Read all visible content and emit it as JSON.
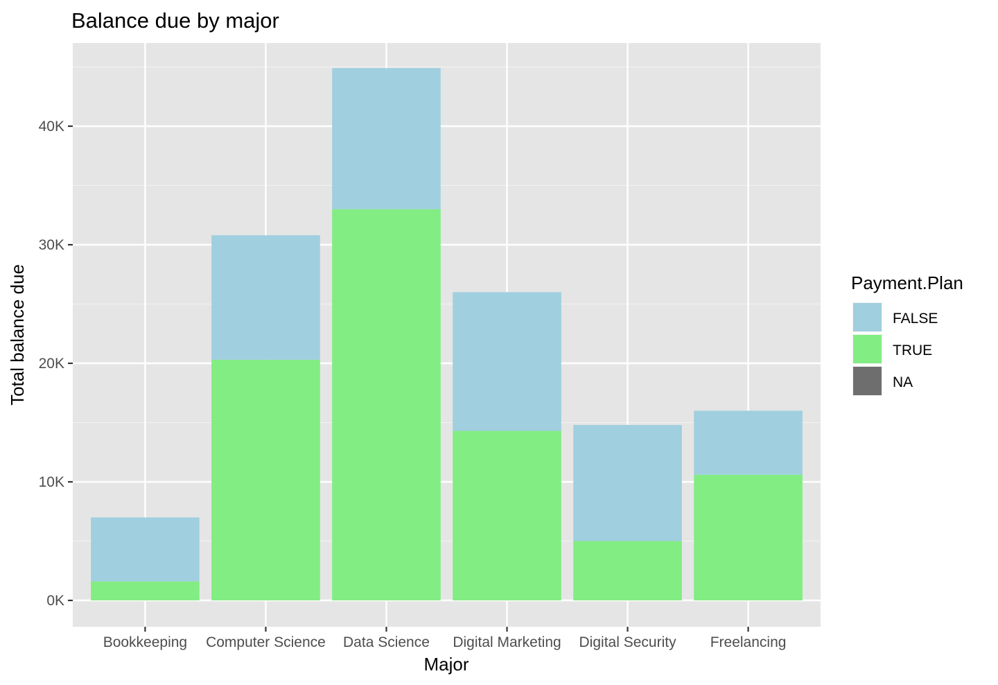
{
  "chart_data": {
    "type": "bar",
    "stacked": true,
    "title": "Balance due by major",
    "xlabel": "Major",
    "ylabel": "Total balance due",
    "ylim": [
      0,
      45000
    ],
    "yticks": [
      0,
      10000,
      20000,
      30000,
      40000
    ],
    "ytick_labels": [
      "0K",
      "10K",
      "20K",
      "30K",
      "40K"
    ],
    "categories": [
      "Bookkeeping",
      "Computer Science",
      "Data Science",
      "Digital Marketing",
      "Digital Security",
      "Freelancing"
    ],
    "series": [
      {
        "name": "TRUE",
        "color": "#82ed82",
        "values": [
          1600,
          20300,
          33000,
          14300,
          5000,
          10600
        ]
      },
      {
        "name": "FALSE",
        "color": "#a0cfdf",
        "values": [
          5400,
          10500,
          11900,
          11700,
          9800,
          5400
        ]
      }
    ],
    "legend": {
      "title": "Payment.Plan",
      "position": "right",
      "entries": [
        {
          "label": "FALSE",
          "color": "#a0cfdf"
        },
        {
          "label": "TRUE",
          "color": "#82ed82"
        },
        {
          "label": "NA",
          "color": "#6e6e6e"
        }
      ]
    },
    "grid": true
  }
}
